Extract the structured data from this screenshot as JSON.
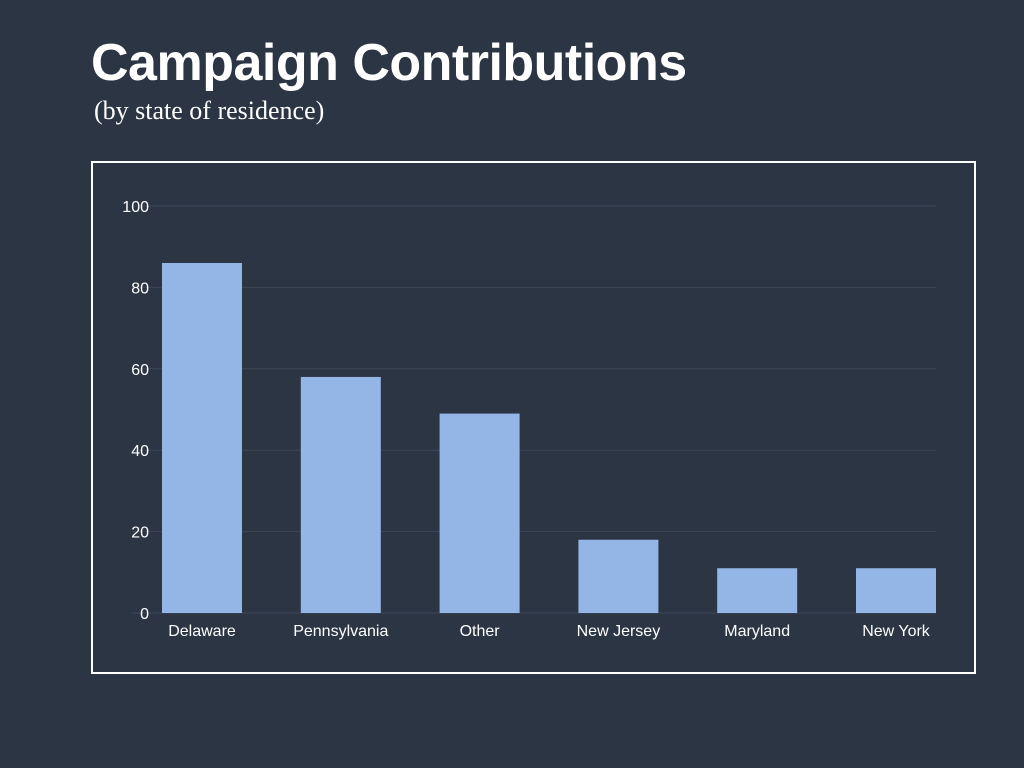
{
  "slide": {
    "title": "Campaign Contributions",
    "subtitle": "(by state of residence)"
  },
  "colors": {
    "background": "#2c3544",
    "bar": "#93b6e6",
    "gridline": "#3c4657",
    "frame": "#ffffff",
    "text": "#ffffff"
  },
  "chart_data": {
    "type": "bar",
    "categories": [
      "Delaware",
      "Pennsylvania",
      "Other",
      "New Jersey",
      "Maryland",
      "New York"
    ],
    "values": [
      86,
      58,
      49,
      18,
      11,
      11
    ],
    "ylim": [
      0,
      100
    ],
    "yticks": [
      0,
      20,
      40,
      60,
      80,
      100
    ],
    "ytick_labels": [
      "0",
      "20",
      "40",
      "60",
      "80",
      "100"
    ],
    "grid": true,
    "legend": "none",
    "xlabel": "",
    "ylabel": ""
  }
}
